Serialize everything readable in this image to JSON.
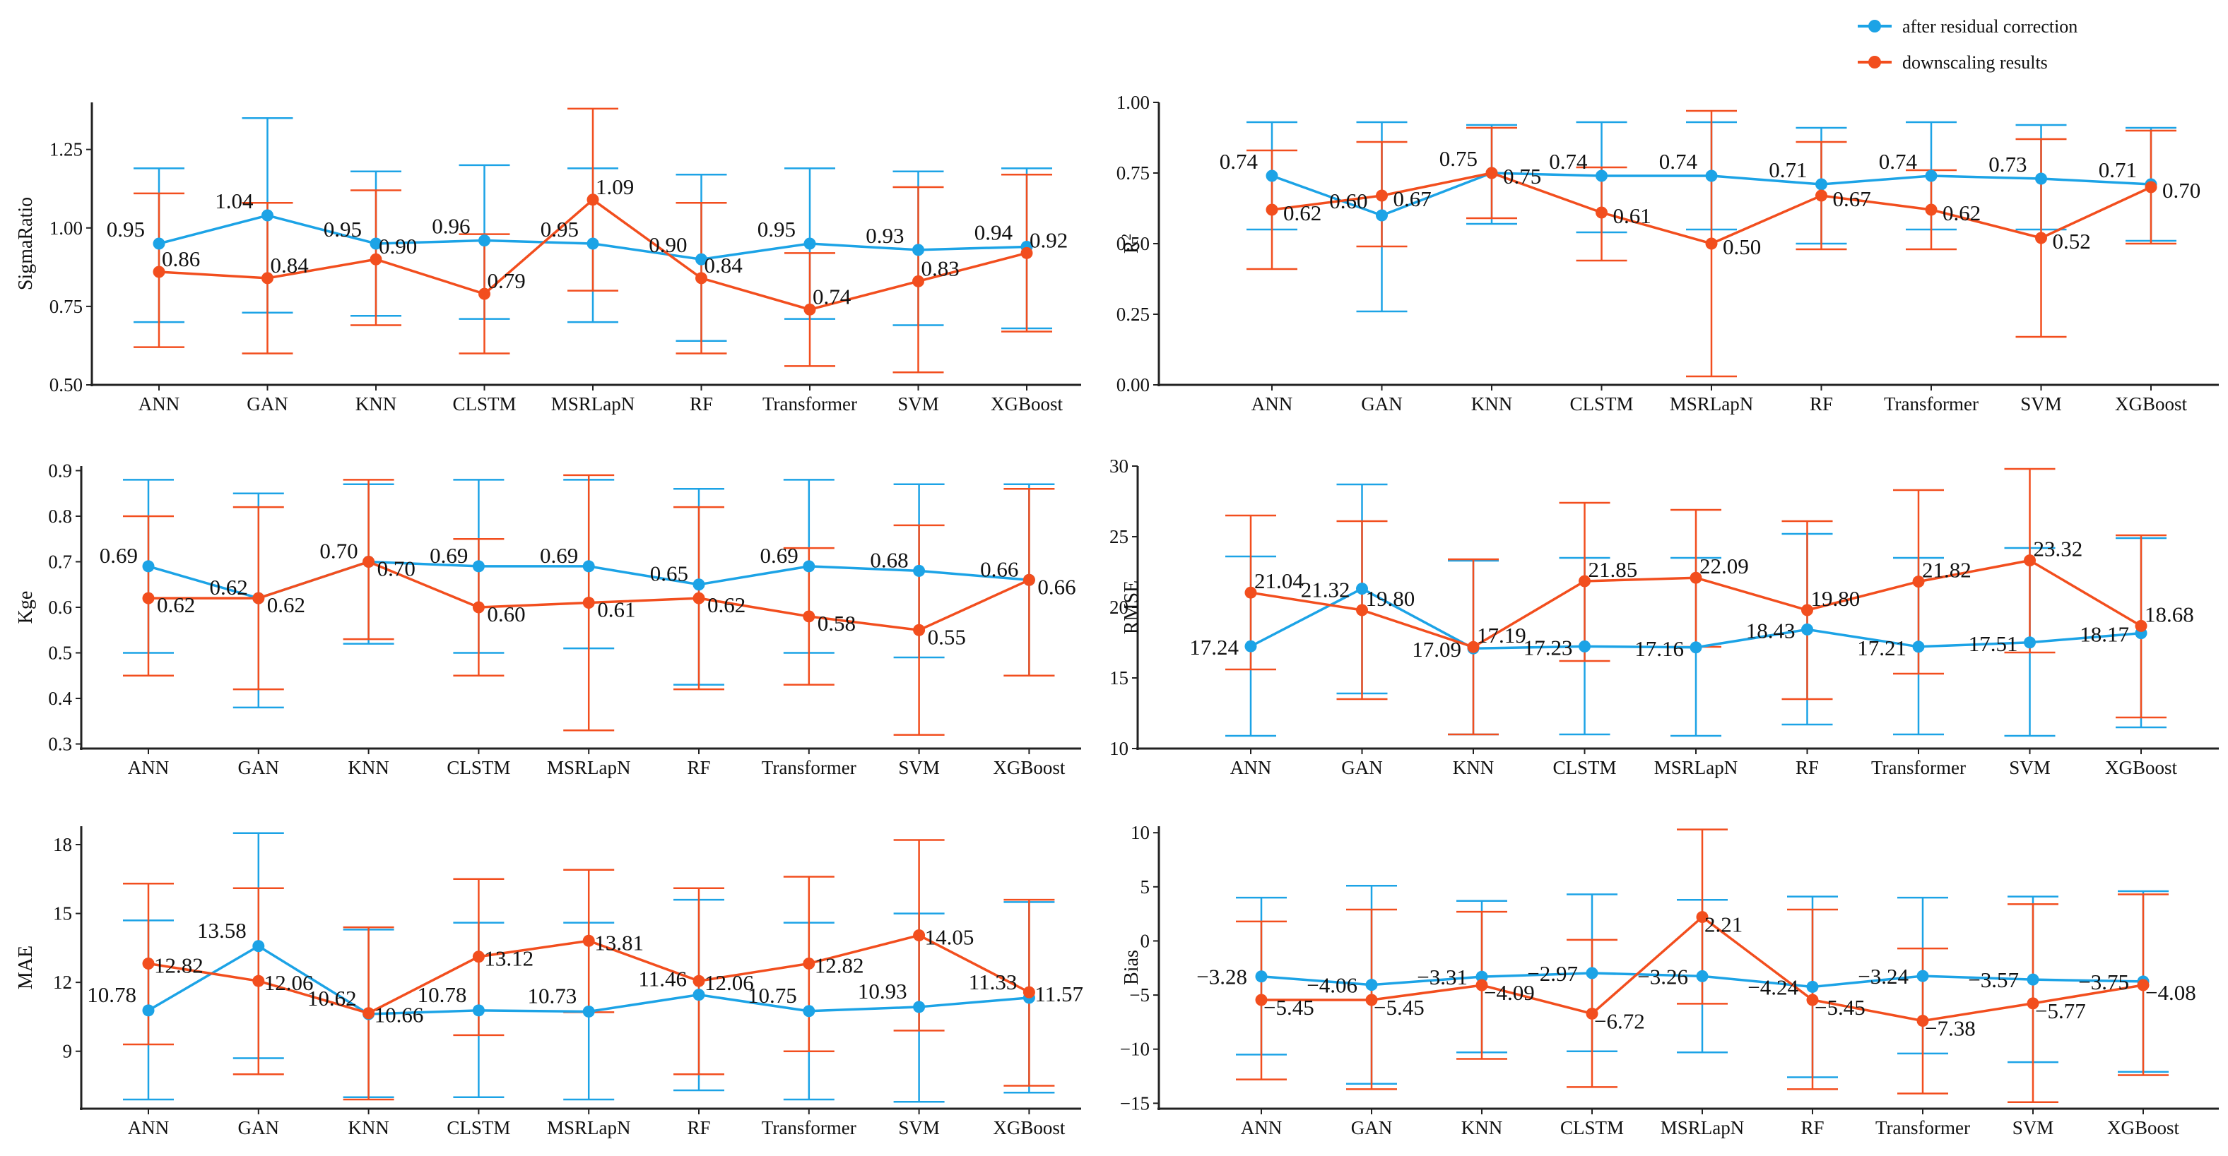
{
  "legend": {
    "items": [
      {
        "label": "after residual correction",
        "color": "#1ca3e6"
      },
      {
        "label": "downscaling results",
        "color": "#f24e1e"
      }
    ]
  },
  "chart_data": [
    {
      "type": "line",
      "id": "sigmaratio",
      "ylabel": "SigmaRatio",
      "categories": [
        "ANN",
        "GAN",
        "KNN",
        "CLSTM",
        "MSRLapN",
        "RF",
        "Transformer",
        "SVM",
        "XGBoost"
      ],
      "ylim": [
        0.5,
        1.4
      ],
      "yticks": [
        0.5,
        0.75,
        1.0,
        1.25
      ],
      "tick_format": "0.00",
      "series": [
        {
          "name": "after residual correction",
          "values": [
            0.95,
            1.04,
            0.95,
            0.96,
            0.95,
            0.9,
            0.95,
            0.93,
            0.94
          ],
          "labels": [
            "0.95",
            "1.04",
            "0.95",
            "0.96",
            "0.95",
            "0.90",
            "0.95",
            "0.93",
            "0.94"
          ],
          "err_low": [
            0.7,
            0.73,
            0.72,
            0.71,
            0.7,
            0.64,
            0.71,
            0.69,
            0.68
          ],
          "err_high": [
            1.19,
            1.35,
            1.18,
            1.2,
            1.19,
            1.17,
            1.19,
            1.18,
            1.19
          ]
        },
        {
          "name": "downscaling results",
          "values": [
            0.86,
            0.84,
            0.9,
            0.79,
            1.09,
            0.84,
            0.74,
            0.83,
            0.92
          ],
          "labels": [
            "0.86",
            "0.84",
            "0.90",
            "0.79",
            "1.09",
            "0.84",
            "0.74",
            "0.83",
            "0.92"
          ],
          "err_low": [
            0.62,
            0.6,
            0.69,
            0.6,
            0.8,
            0.6,
            0.56,
            0.54,
            0.67
          ],
          "err_high": [
            1.11,
            1.08,
            1.12,
            0.98,
            1.38,
            1.08,
            0.92,
            1.13,
            1.17
          ]
        }
      ]
    },
    {
      "type": "line",
      "id": "r2",
      "ylabel": "R",
      "ylabel_sup": "2",
      "categories": [
        "ANN",
        "GAN",
        "KNN",
        "CLSTM",
        "MSRLapN",
        "RF",
        "Transformer",
        "SVM",
        "XGBoost"
      ],
      "ylim": [
        0.0,
        1.0
      ],
      "yticks": [
        0.0,
        0.25,
        0.5,
        0.75,
        1.0
      ],
      "tick_format": "0.00",
      "series": [
        {
          "name": "after residual correction",
          "values": [
            0.74,
            0.6,
            0.75,
            0.74,
            0.74,
            0.71,
            0.74,
            0.73,
            0.71
          ],
          "labels": [
            "0.74",
            "0.60",
            "0.75",
            "0.74",
            "0.74",
            "0.71",
            "0.74",
            "0.73",
            "0.71"
          ],
          "err_low": [
            0.55,
            0.26,
            0.57,
            0.54,
            0.55,
            0.5,
            0.55,
            0.55,
            0.51
          ],
          "err_high": [
            0.93,
            0.93,
            0.92,
            0.93,
            0.93,
            0.91,
            0.93,
            0.92,
            0.91
          ]
        },
        {
          "name": "downscaling results",
          "values": [
            0.62,
            0.67,
            0.75,
            0.61,
            0.5,
            0.67,
            0.62,
            0.52,
            0.7
          ],
          "labels": [
            "0.62",
            "0.67",
            "0.75",
            "0.61",
            "0.50",
            "0.67",
            "0.62",
            "0.52",
            "0.70"
          ],
          "err_low": [
            0.41,
            0.49,
            0.59,
            0.44,
            0.03,
            0.48,
            0.48,
            0.17,
            0.5
          ],
          "err_high": [
            0.83,
            0.86,
            0.91,
            0.77,
            0.97,
            0.86,
            0.76,
            0.87,
            0.9
          ]
        }
      ]
    },
    {
      "type": "line",
      "id": "kge",
      "ylabel": "Kge",
      "categories": [
        "ANN",
        "GAN",
        "KNN",
        "CLSTM",
        "MSRLapN",
        "RF",
        "Transformer",
        "SVM",
        "XGBoost"
      ],
      "ylim": [
        0.29,
        0.91
      ],
      "yticks": [
        0.3,
        0.4,
        0.5,
        0.6,
        0.7,
        0.8,
        0.9
      ],
      "tick_format": "0.0",
      "series": [
        {
          "name": "after residual correction",
          "values": [
            0.69,
            0.62,
            0.7,
            0.69,
            0.69,
            0.65,
            0.69,
            0.68,
            0.66
          ],
          "labels": [
            "0.69",
            "0.62",
            "0.70",
            "0.69",
            "0.69",
            "0.65",
            "0.69",
            "0.68",
            "0.66"
          ],
          "err_low": [
            0.5,
            0.38,
            0.52,
            0.5,
            0.51,
            0.43,
            0.5,
            0.49,
            0.45
          ],
          "err_high": [
            0.88,
            0.85,
            0.87,
            0.88,
            0.88,
            0.86,
            0.88,
            0.87,
            0.87
          ]
        },
        {
          "name": "downscaling results",
          "values": [
            0.62,
            0.62,
            0.7,
            0.6,
            0.61,
            0.62,
            0.58,
            0.55,
            0.66
          ],
          "labels": [
            "0.62",
            "0.62",
            "0.70",
            "0.60",
            "0.61",
            "0.62",
            "0.58",
            "0.55",
            "0.66"
          ],
          "err_low": [
            0.45,
            0.42,
            0.53,
            0.45,
            0.33,
            0.42,
            0.43,
            0.32,
            0.45
          ],
          "err_high": [
            0.8,
            0.82,
            0.88,
            0.75,
            0.89,
            0.82,
            0.73,
            0.78,
            0.86
          ]
        }
      ]
    },
    {
      "type": "line",
      "id": "rmse",
      "ylabel": "RMSE",
      "categories": [
        "ANN",
        "GAN",
        "KNN",
        "CLSTM",
        "MSRLapN",
        "RF",
        "Transformer",
        "SVM",
        "XGBoost"
      ],
      "ylim": [
        10,
        30
      ],
      "yticks": [
        10,
        15,
        20,
        25,
        30
      ],
      "tick_format": "0",
      "series": [
        {
          "name": "after residual correction",
          "values": [
            17.24,
            21.32,
            17.09,
            17.23,
            17.16,
            18.43,
            17.21,
            17.51,
            18.17
          ],
          "labels": [
            "17.24",
            "21.32",
            "17.09",
            "17.23",
            "17.16",
            "18.43",
            "17.21",
            "17.51",
            "18.17"
          ],
          "err_low": [
            10.9,
            13.9,
            11.0,
            11.0,
            10.9,
            11.7,
            11.0,
            10.9,
            11.5
          ],
          "err_high": [
            23.6,
            28.7,
            23.3,
            23.5,
            23.5,
            25.2,
            23.5,
            24.2,
            24.9
          ]
        },
        {
          "name": "downscaling results",
          "values": [
            21.04,
            19.8,
            17.19,
            21.85,
            22.09,
            19.8,
            21.82,
            23.32,
            18.68
          ],
          "labels": [
            "21.04",
            "19.80",
            "17.19",
            "21.85",
            "22.09",
            "19.80",
            "21.82",
            "23.32",
            "18.68"
          ],
          "err_low": [
            15.6,
            13.5,
            11.0,
            16.2,
            17.2,
            13.5,
            15.3,
            16.8,
            12.2
          ],
          "err_high": [
            26.5,
            26.1,
            23.4,
            27.4,
            26.9,
            26.1,
            28.3,
            29.8,
            25.1
          ]
        }
      ]
    },
    {
      "type": "line",
      "id": "mae",
      "ylabel": "MAE",
      "categories": [
        "ANN",
        "GAN",
        "KNN",
        "CLSTM",
        "MSRLapN",
        "RF",
        "Transformer",
        "SVM",
        "XGBoost"
      ],
      "ylim": [
        6.5,
        18.8
      ],
      "yticks": [
        9,
        12,
        15,
        18
      ],
      "tick_format": "0",
      "series": [
        {
          "name": "after residual correction",
          "values": [
            10.78,
            13.58,
            10.62,
            10.78,
            10.73,
            11.46,
            10.75,
            10.93,
            11.33
          ],
          "labels": [
            "10.78",
            "13.58",
            "10.62",
            "10.78",
            "10.73",
            "11.46",
            "10.75",
            "10.93",
            "11.33"
          ],
          "err_low": [
            6.9,
            8.7,
            7.0,
            7.0,
            6.9,
            7.3,
            6.9,
            6.8,
            7.2
          ],
          "err_high": [
            14.7,
            18.5,
            14.3,
            14.6,
            14.6,
            15.6,
            14.6,
            15.0,
            15.5
          ]
        },
        {
          "name": "downscaling results",
          "values": [
            12.82,
            12.06,
            10.66,
            13.12,
            13.81,
            12.06,
            12.82,
            14.05,
            11.57
          ],
          "labels": [
            "12.82",
            "12.06",
            "10.66",
            "13.12",
            "13.81",
            "12.06",
            "12.82",
            "14.05",
            "11.57"
          ],
          "err_low": [
            9.3,
            8.0,
            6.9,
            9.7,
            10.7,
            8.0,
            9.0,
            9.9,
            7.5
          ],
          "err_high": [
            16.3,
            16.1,
            14.4,
            16.5,
            16.9,
            16.1,
            16.6,
            18.2,
            15.6
          ]
        }
      ]
    },
    {
      "type": "line",
      "id": "bias",
      "ylabel": "Bias",
      "categories": [
        "ANN",
        "GAN",
        "KNN",
        "CLSTM",
        "MSRLapN",
        "RF",
        "Transformer",
        "SVM",
        "XGBoost"
      ],
      "ylim": [
        -15.5,
        10.6
      ],
      "yticks": [
        -15,
        -10,
        -5,
        0,
        5,
        10
      ],
      "tick_format": "minus",
      "series": [
        {
          "name": "after residual correction",
          "values": [
            -3.28,
            -4.06,
            -3.31,
            -2.97,
            -3.26,
            -4.24,
            -3.24,
            -3.57,
            -3.75
          ],
          "labels": [
            "−3.28",
            "−4.06",
            "−3.31",
            "−2.97",
            "−3.26",
            "−4.24",
            "−3.24",
            "−3.57",
            "−3.75"
          ],
          "err_low": [
            -10.5,
            -13.2,
            -10.3,
            -10.2,
            -10.3,
            -12.6,
            -10.4,
            -11.2,
            -12.1
          ],
          "err_high": [
            4.0,
            5.1,
            3.7,
            4.3,
            3.8,
            4.1,
            4.0,
            4.1,
            4.6
          ]
        },
        {
          "name": "downscaling results",
          "values": [
            -5.45,
            -5.45,
            -4.09,
            -6.72,
            2.21,
            -5.45,
            -7.38,
            -5.77,
            -4.08
          ],
          "labels": [
            "−5.45",
            "−5.45",
            "−4.09",
            "−6.72",
            "2.21",
            "−5.45",
            "−7.38",
            "−5.77",
            "−4.08"
          ],
          "err_low": [
            -12.8,
            -13.7,
            -10.9,
            -13.5,
            -5.8,
            -13.7,
            -14.1,
            -14.9,
            -12.4
          ],
          "err_high": [
            1.8,
            2.9,
            2.7,
            0.1,
            10.3,
            2.9,
            -0.7,
            3.4,
            4.3
          ]
        }
      ]
    }
  ]
}
